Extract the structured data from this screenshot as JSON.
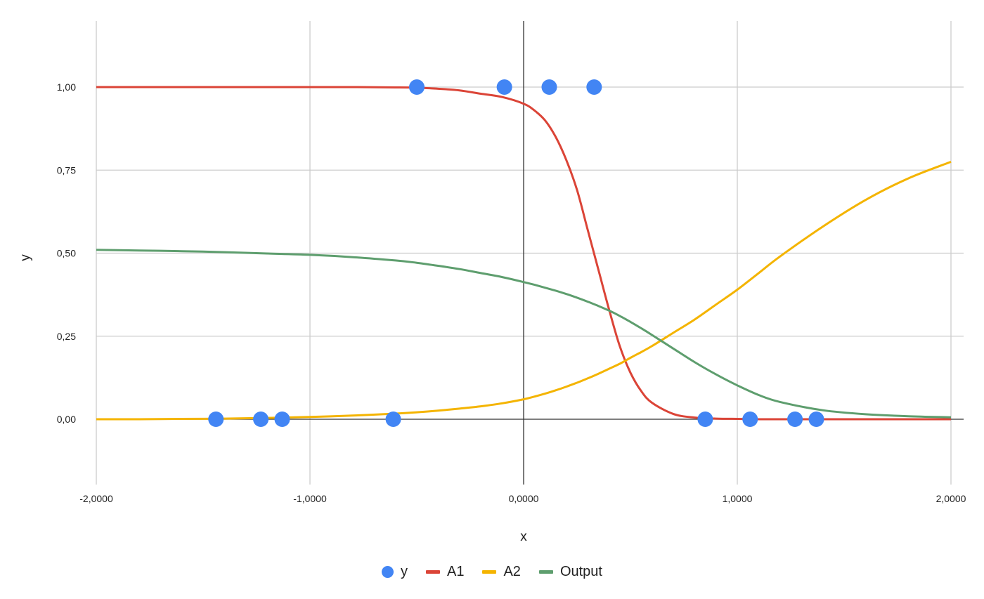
{
  "chart_data": {
    "type": "line",
    "title": "",
    "xlabel": "x",
    "ylabel": "y",
    "xlim": [
      -2,
      2
    ],
    "ylim": [
      -0.2,
      1.2
    ],
    "x_ticks": [
      -2,
      -1,
      0,
      1,
      2
    ],
    "x_tick_labels": [
      "-2,0000",
      "-1,0000",
      "0,0000",
      "1,0000",
      "2,0000"
    ],
    "y_ticks": [
      0,
      0.25,
      0.5,
      0.75,
      1
    ],
    "y_tick_labels": [
      "0,00",
      "0,25",
      "0,50",
      "0,75",
      "1,00"
    ],
    "grid": true,
    "legend_position": "bottom-center",
    "x": [
      -2.0,
      -1.8,
      -1.6,
      -1.4,
      -1.2,
      -1.0,
      -0.8,
      -0.6,
      -0.5,
      -0.4,
      -0.3,
      -0.2,
      -0.1,
      0.0,
      0.05,
      0.1,
      0.15,
      0.2,
      0.25,
      0.3,
      0.35,
      0.4,
      0.45,
      0.5,
      0.55,
      0.6,
      0.7,
      0.8,
      0.9,
      1.0,
      1.1,
      1.2,
      1.4,
      1.6,
      1.8,
      2.0
    ],
    "series": [
      {
        "name": "y",
        "kind": "scatter",
        "color": "#4285F4",
        "points": [
          [
            -1.44,
            0
          ],
          [
            -1.23,
            0
          ],
          [
            -1.13,
            0
          ],
          [
            -0.61,
            0
          ],
          [
            -0.5,
            1
          ],
          [
            -0.09,
            1
          ],
          [
            0.12,
            1
          ],
          [
            0.33,
            1
          ],
          [
            0.85,
            0
          ],
          [
            1.06,
            0
          ],
          [
            1.27,
            0
          ],
          [
            1.37,
            0
          ]
        ]
      },
      {
        "name": "A1",
        "kind": "line",
        "color": "#DB4437",
        "values": [
          1.0,
          1.0,
          1.0,
          1.0,
          1.0,
          1.0,
          1.0,
          0.999,
          0.998,
          0.995,
          0.99,
          0.98,
          0.97,
          0.95,
          0.93,
          0.9,
          0.85,
          0.78,
          0.69,
          0.57,
          0.45,
          0.33,
          0.22,
          0.14,
          0.085,
          0.05,
          0.016,
          0.005,
          0.002,
          0.001,
          0.0,
          0.0,
          0.0,
          0.0,
          0.0,
          0.0
        ]
      },
      {
        "name": "A2",
        "kind": "line",
        "color": "#F4B400",
        "values": [
          0.0,
          0.0,
          0.001,
          0.002,
          0.004,
          0.007,
          0.011,
          0.017,
          0.021,
          0.026,
          0.032,
          0.039,
          0.048,
          0.06,
          0.068,
          0.077,
          0.087,
          0.098,
          0.11,
          0.123,
          0.137,
          0.152,
          0.167,
          0.185,
          0.202,
          0.22,
          0.26,
          0.3,
          0.345,
          0.39,
          0.44,
          0.49,
          0.58,
          0.66,
          0.725,
          0.775
        ]
      },
      {
        "name": "Output",
        "kind": "line",
        "color": "#5E9E6E",
        "values": [
          0.51,
          0.508,
          0.506,
          0.503,
          0.499,
          0.495,
          0.488,
          0.478,
          0.471,
          0.462,
          0.452,
          0.44,
          0.428,
          0.413,
          0.405,
          0.396,
          0.387,
          0.377,
          0.366,
          0.354,
          0.341,
          0.327,
          0.311,
          0.293,
          0.274,
          0.254,
          0.213,
          0.172,
          0.135,
          0.102,
          0.073,
          0.052,
          0.027,
          0.015,
          0.009,
          0.006
        ]
      }
    ]
  }
}
